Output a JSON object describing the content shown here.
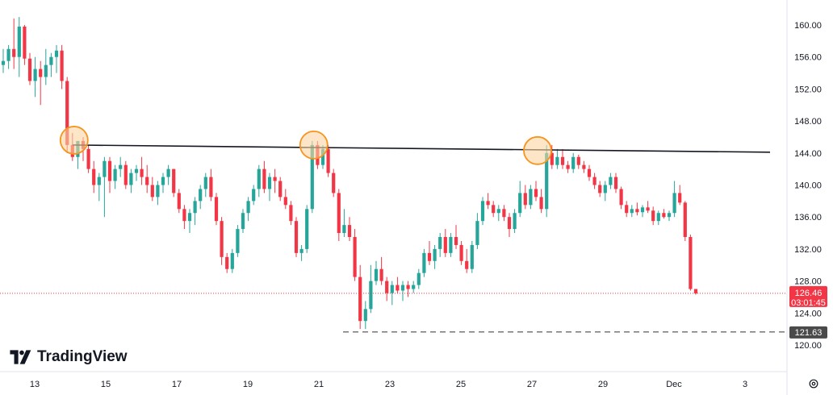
{
  "brand": {
    "name": "TradingView",
    "logo_icon": "tradingview-logo-icon"
  },
  "settings": {
    "icon": "gear-icon"
  },
  "colors": {
    "up": "#26a69a",
    "down": "#f23645",
    "trendline": "#131722",
    "circle_stroke": "#f7941d",
    "circle_fill": "#fbd3a2",
    "price_line": "#f23645",
    "low_line": "#4a4a4a"
  },
  "chart_data": {
    "type": "candlestick",
    "ylim": [
      118.5,
      162
    ],
    "y_ticks": [
      "160.00",
      "156.00",
      "152.00",
      "148.00",
      "144.00",
      "140.00",
      "136.00",
      "132.00",
      "128.00",
      "124.00",
      "120.00"
    ],
    "x_ticks": [
      "13",
      "15",
      "17",
      "19",
      "21",
      "23",
      "25",
      "27",
      "29",
      "Dec",
      "3"
    ],
    "current_price": {
      "value": "126.46",
      "countdown": "03:01:45"
    },
    "low_marker": {
      "value": "121.63"
    },
    "resistance_line": {
      "start": 145.0,
      "end": 144.1
    },
    "circled_tops": [
      145.6,
      145.0,
      144.3
    ],
    "candles": [
      [
        155.0,
        157.0,
        154.0,
        155.5
      ],
      [
        155.5,
        157.5,
        154.5,
        157.0
      ],
      [
        157.0,
        160.8,
        154.5,
        156.0
      ],
      [
        156.0,
        161.0,
        153.5,
        159.8
      ],
      [
        159.8,
        160.0,
        155.0,
        155.8
      ],
      [
        155.8,
        156.5,
        152.5,
        153.0
      ],
      [
        153.0,
        156.0,
        151.0,
        154.5
      ],
      [
        154.5,
        155.5,
        150.0,
        153.5
      ],
      [
        153.5,
        157.0,
        152.5,
        155.0
      ],
      [
        155.0,
        156.5,
        153.5,
        156.0
      ],
      [
        156.0,
        157.5,
        154.0,
        156.8
      ],
      [
        156.8,
        157.5,
        152.0,
        153.0
      ],
      [
        153.0,
        153.5,
        144.0,
        145.0
      ],
      [
        145.0,
        146.5,
        143.0,
        143.5
      ],
      [
        143.5,
        145.5,
        142.0,
        145.5
      ],
      [
        145.5,
        146.0,
        143.0,
        144.5
      ],
      [
        144.5,
        145.0,
        141.5,
        142.0
      ],
      [
        142.0,
        143.0,
        139.0,
        140.0
      ],
      [
        140.0,
        141.5,
        138.0,
        141.0
      ],
      [
        141.0,
        143.5,
        136.0,
        143.0
      ],
      [
        143.0,
        143.5,
        139.0,
        140.5
      ],
      [
        140.5,
        142.5,
        139.5,
        142.0
      ],
      [
        142.0,
        143.5,
        141.0,
        142.5
      ],
      [
        142.5,
        143.0,
        139.5,
        140.0
      ],
      [
        140.0,
        142.0,
        139.0,
        141.5
      ],
      [
        141.5,
        142.5,
        140.5,
        142.0
      ],
      [
        142.0,
        143.5,
        140.0,
        141.0
      ],
      [
        141.0,
        142.5,
        139.0,
        140.0
      ],
      [
        140.0,
        141.0,
        138.0,
        138.5
      ],
      [
        138.5,
        140.5,
        137.5,
        140.0
      ],
      [
        140.0,
        141.5,
        139.0,
        141.0
      ],
      [
        141.0,
        142.5,
        140.0,
        142.0
      ],
      [
        142.0,
        142.0,
        138.5,
        139.0
      ],
      [
        139.0,
        139.5,
        136.5,
        137.0
      ],
      [
        137.0,
        137.5,
        134.5,
        135.5
      ],
      [
        135.5,
        137.0,
        134.0,
        136.5
      ],
      [
        136.5,
        138.5,
        135.0,
        138.0
      ],
      [
        138.0,
        140.0,
        137.0,
        139.5
      ],
      [
        139.5,
        141.5,
        138.5,
        141.0
      ],
      [
        141.0,
        142.0,
        138.0,
        138.5
      ],
      [
        138.5,
        139.0,
        135.0,
        135.5
      ],
      [
        135.5,
        136.0,
        130.0,
        131.0
      ],
      [
        131.0,
        131.5,
        129.0,
        129.5
      ],
      [
        129.5,
        132.0,
        129.0,
        131.5
      ],
      [
        131.5,
        135.0,
        131.0,
        134.5
      ],
      [
        134.5,
        137.0,
        134.0,
        136.5
      ],
      [
        136.5,
        138.5,
        135.5,
        138.0
      ],
      [
        138.0,
        140.0,
        137.5,
        139.5
      ],
      [
        139.5,
        142.5,
        138.5,
        142.0
      ],
      [
        142.0,
        143.0,
        139.0,
        139.5
      ],
      [
        139.5,
        141.5,
        138.0,
        141.0
      ],
      [
        141.0,
        142.0,
        139.0,
        140.5
      ],
      [
        140.5,
        141.0,
        138.0,
        138.5
      ],
      [
        138.5,
        139.5,
        137.0,
        137.5
      ],
      [
        137.5,
        138.0,
        135.0,
        135.5
      ],
      [
        135.5,
        136.0,
        131.0,
        131.5
      ],
      [
        131.5,
        132.5,
        130.5,
        132.0
      ],
      [
        132.0,
        137.5,
        131.5,
        137.0
      ],
      [
        137.0,
        145.5,
        136.5,
        145.0
      ],
      [
        145.0,
        145.5,
        142.0,
        142.5
      ],
      [
        142.5,
        145.0,
        142.0,
        144.5
      ],
      [
        144.5,
        145.0,
        141.0,
        141.5
      ],
      [
        141.5,
        142.0,
        138.5,
        139.0
      ],
      [
        139.0,
        139.5,
        133.0,
        134.0
      ],
      [
        134.0,
        137.0,
        133.5,
        135.0
      ],
      [
        135.0,
        136.0,
        133.0,
        133.5
      ],
      [
        133.5,
        134.5,
        128.0,
        128.5
      ],
      [
        128.5,
        130.0,
        122.0,
        123.0
      ],
      [
        123.0,
        125.5,
        122.0,
        124.5
      ],
      [
        124.5,
        130.0,
        124.0,
        128.0
      ],
      [
        128.0,
        130.5,
        127.5,
        129.5
      ],
      [
        129.5,
        131.0,
        127.5,
        128.0
      ],
      [
        128.0,
        128.5,
        125.5,
        126.5
      ],
      [
        126.5,
        128.0,
        125.0,
        127.5
      ],
      [
        127.5,
        128.5,
        126.5,
        126.8
      ],
      [
        126.8,
        128.0,
        125.5,
        127.5
      ],
      [
        127.5,
        128.0,
        126.0,
        127.0
      ],
      [
        127.0,
        128.0,
        126.5,
        127.5
      ],
      [
        127.5,
        129.5,
        127.0,
        129.0
      ],
      [
        129.0,
        132.0,
        128.5,
        131.5
      ],
      [
        131.5,
        133.0,
        130.0,
        130.5
      ],
      [
        130.5,
        132.5,
        129.5,
        132.0
      ],
      [
        132.0,
        134.0,
        131.0,
        133.5
      ],
      [
        133.5,
        134.5,
        131.0,
        131.5
      ],
      [
        131.5,
        134.0,
        131.0,
        133.5
      ],
      [
        133.5,
        135.0,
        132.0,
        132.5
      ],
      [
        132.5,
        133.0,
        130.0,
        130.5
      ],
      [
        130.5,
        132.0,
        129.0,
        129.5
      ],
      [
        129.5,
        133.0,
        129.0,
        132.5
      ],
      [
        132.5,
        136.5,
        132.0,
        135.5
      ],
      [
        135.5,
        138.5,
        135.0,
        138.0
      ],
      [
        138.0,
        139.0,
        137.0,
        137.5
      ],
      [
        137.5,
        138.0,
        136.0,
        136.5
      ],
      [
        136.5,
        137.5,
        135.5,
        137.0
      ],
      [
        137.0,
        137.5,
        135.5,
        136.0
      ],
      [
        136.0,
        136.5,
        133.5,
        134.5
      ],
      [
        134.5,
        137.0,
        134.0,
        136.5
      ],
      [
        136.5,
        140.5,
        136.0,
        139.0
      ],
      [
        139.0,
        140.0,
        137.0,
        137.5
      ],
      [
        137.5,
        140.0,
        137.0,
        139.5
      ],
      [
        139.5,
        140.5,
        138.0,
        138.5
      ],
      [
        138.5,
        139.5,
        136.5,
        137.0
      ],
      [
        137.0,
        145.0,
        136.0,
        144.0
      ],
      [
        144.0,
        145.0,
        142.0,
        142.5
      ],
      [
        142.5,
        144.5,
        142.0,
        143.5
      ],
      [
        143.5,
        144.5,
        142.0,
        142.5
      ],
      [
        142.5,
        143.0,
        141.5,
        142.0
      ],
      [
        142.0,
        144.0,
        141.5,
        143.5
      ],
      [
        143.5,
        143.8,
        142.0,
        142.5
      ],
      [
        142.5,
        143.0,
        141.5,
        142.0
      ],
      [
        142.0,
        142.5,
        140.5,
        141.0
      ],
      [
        141.0,
        141.5,
        139.5,
        140.0
      ],
      [
        140.0,
        140.5,
        138.5,
        139.0
      ],
      [
        139.0,
        140.5,
        138.0,
        140.0
      ],
      [
        140.0,
        141.5,
        139.5,
        141.0
      ],
      [
        141.0,
        141.5,
        139.0,
        139.5
      ],
      [
        139.5,
        139.8,
        137.0,
        137.5
      ],
      [
        137.5,
        138.0,
        136.0,
        136.5
      ],
      [
        136.5,
        137.5,
        136.0,
        137.0
      ],
      [
        137.0,
        137.8,
        136.2,
        136.6
      ],
      [
        136.6,
        137.5,
        136.0,
        137.2
      ],
      [
        137.2,
        138.0,
        136.5,
        136.8
      ],
      [
        136.8,
        137.3,
        135.0,
        135.5
      ],
      [
        135.5,
        136.8,
        135.0,
        136.5
      ],
      [
        136.5,
        137.0,
        135.8,
        136.0
      ],
      [
        136.0,
        136.8,
        135.5,
        136.5
      ],
      [
        136.5,
        140.5,
        136.0,
        139.0
      ],
      [
        139.0,
        140.0,
        137.5,
        137.8
      ],
      [
        137.8,
        138.0,
        133.0,
        133.5
      ],
      [
        133.5,
        133.8,
        126.8,
        127.0
      ],
      [
        127.0,
        127.0,
        126.3,
        126.46
      ]
    ]
  }
}
